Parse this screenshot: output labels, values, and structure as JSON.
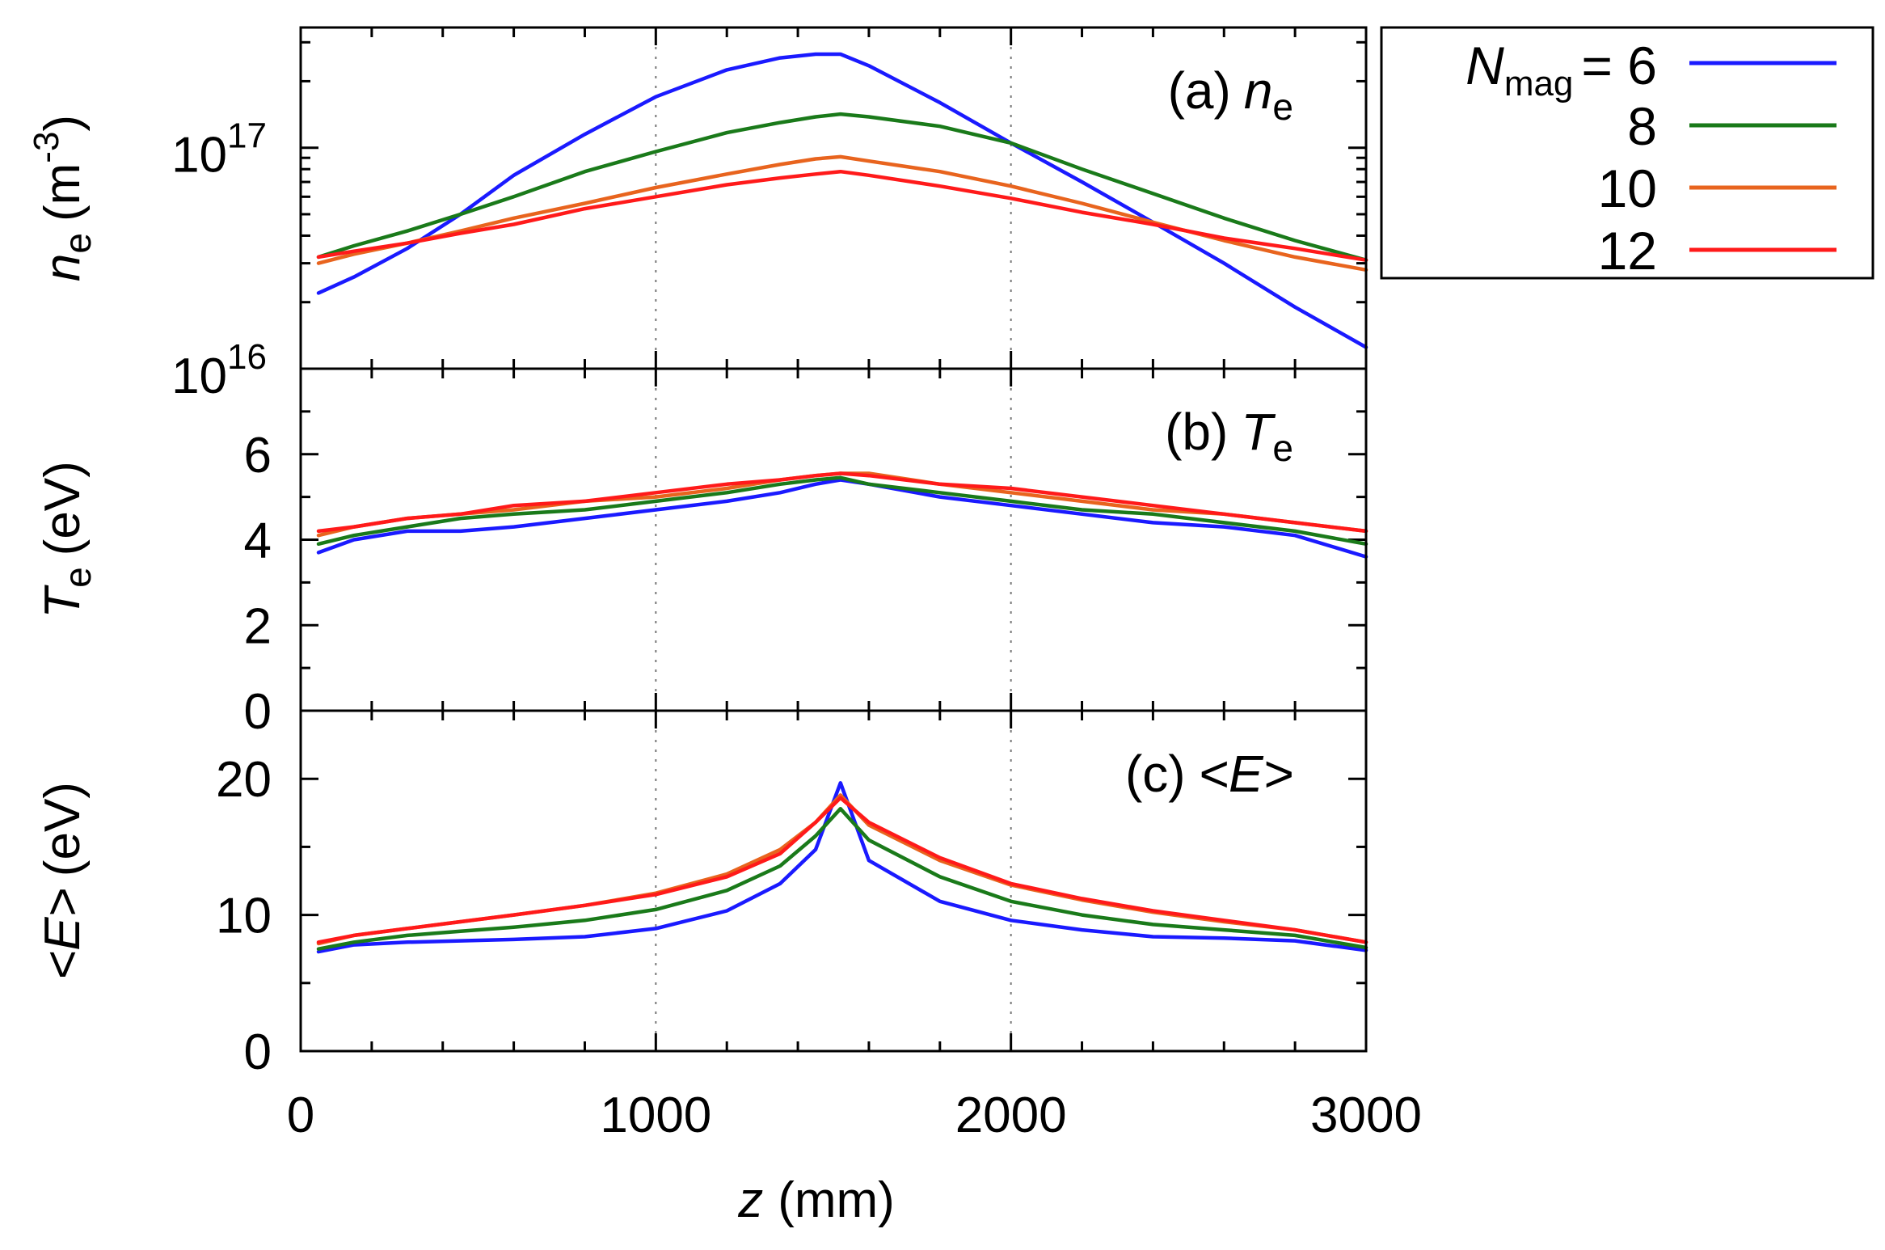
{
  "chart_data": {
    "type": "line",
    "shared_x_label": {
      "variable": "z",
      "units": "(mm)"
    },
    "x_ticks": [
      "0",
      "1000",
      "2000",
      "3000"
    ],
    "xlim": [
      0,
      3000
    ],
    "x": [
      50,
      150,
      300,
      450,
      600,
      800,
      1000,
      1200,
      1350,
      1450,
      1520,
      1600,
      1800,
      2000,
      2200,
      2400,
      2600,
      2800,
      3000
    ],
    "legend": {
      "title_var": "N",
      "title_sub": "mag",
      "title_eq": "= 6",
      "entries": [
        "6",
        "8",
        "10",
        "12"
      ],
      "location": "outside-top-right"
    },
    "colors": {
      "6": "#1a1aff",
      "8": "#1a7a1a",
      "10": "#e8641e",
      "12": "#ff1a1a"
    },
    "panels": [
      {
        "label_prefix": "(a)",
        "label_var": "n",
        "label_sub": "e",
        "ylabel_var": "n",
        "ylabel_sub": "e",
        "ylabel_units": "(m",
        "ylabel_units_sup": "-3",
        "ylabel_units_end": ")",
        "yscale": "log",
        "ylim": [
          1e+16,
          3.5e+17
        ],
        "y_ticks": [
          {
            "value": 1e+16,
            "base": "10",
            "exp": "16"
          },
          {
            "value": 1e+17,
            "base": "10",
            "exp": "17"
          }
        ],
        "series": [
          {
            "name": "6",
            "values": [
              2.2e+16,
              2.6e+16,
              3.5e+16,
              5e+16,
              7.5e+16,
              1.15e+17,
              1.7e+17,
              2.25e+17,
              2.55e+17,
              2.65e+17,
              2.65e+17,
              2.35e+17,
              1.6e+17,
              1.05e+17,
              7e+16,
              4.6e+16,
              3e+16,
              1.9e+16,
              1.25e+16
            ]
          },
          {
            "name": "8",
            "values": [
              3.2e+16,
              3.6e+16,
              4.2e+16,
              5e+16,
              6e+16,
              7.8e+16,
              9.6e+16,
              1.17e+17,
              1.3e+17,
              1.38e+17,
              1.42e+17,
              1.38e+17,
              1.25e+17,
              1.05e+17,
              8e+16,
              6.2e+16,
              4.8e+16,
              3.8e+16,
              3.1e+16
            ]
          },
          {
            "name": "10",
            "values": [
              3e+16,
              3.3e+16,
              3.7e+16,
              4.2e+16,
              4.8e+16,
              5.6e+16,
              6.6e+16,
              7.6e+16,
              8.4e+16,
              8.9e+16,
              9.1e+16,
              8.7e+16,
              7.8e+16,
              6.7e+16,
              5.6e+16,
              4.6e+16,
              3.8e+16,
              3.2e+16,
              2.8e+16
            ]
          },
          {
            "name": "12",
            "values": [
              3.2e+16,
              3.4e+16,
              3.7e+16,
              4.1e+16,
              4.5e+16,
              5.3e+16,
              6e+16,
              6.8e+16,
              7.3e+16,
              7.6e+16,
              7.8e+16,
              7.5e+16,
              6.7e+16,
              5.9e+16,
              5.1e+16,
              4.5e+16,
              3.9e+16,
              3.5e+16,
              3.1e+16
            ]
          }
        ]
      },
      {
        "label_prefix": "(b)",
        "label_var": "T",
        "label_sub": "e",
        "ylabel_var": "T",
        "ylabel_sub": "e",
        "ylabel_units": "(eV)",
        "ylabel_units_sup": "",
        "ylabel_units_end": "",
        "yscale": "linear",
        "ylim": [
          0,
          8
        ],
        "y_ticks": [
          {
            "value": 0,
            "text": "0"
          },
          {
            "value": 2,
            "text": "2"
          },
          {
            "value": 4,
            "text": "4"
          },
          {
            "value": 6,
            "text": "6"
          }
        ],
        "series": [
          {
            "name": "6",
            "values": [
              3.7,
              4.0,
              4.2,
              4.2,
              4.3,
              4.5,
              4.7,
              4.9,
              5.1,
              5.3,
              5.4,
              5.3,
              5.0,
              4.8,
              4.6,
              4.4,
              4.3,
              4.1,
              3.6
            ]
          },
          {
            "name": "8",
            "values": [
              3.9,
              4.1,
              4.3,
              4.5,
              4.6,
              4.7,
              4.9,
              5.1,
              5.3,
              5.4,
              5.45,
              5.3,
              5.1,
              4.9,
              4.7,
              4.6,
              4.4,
              4.2,
              3.9
            ]
          },
          {
            "name": "10",
            "values": [
              4.1,
              4.3,
              4.5,
              4.6,
              4.7,
              4.9,
              5.0,
              5.2,
              5.4,
              5.5,
              5.55,
              5.55,
              5.3,
              5.1,
              4.9,
              4.7,
              4.6,
              4.4,
              4.2
            ]
          },
          {
            "name": "12",
            "values": [
              4.2,
              4.3,
              4.5,
              4.6,
              4.8,
              4.9,
              5.1,
              5.3,
              5.4,
              5.5,
              5.55,
              5.5,
              5.3,
              5.2,
              5.0,
              4.8,
              4.6,
              4.4,
              4.2
            ]
          }
        ]
      },
      {
        "label_prefix": "(c)",
        "label_var": "<E>",
        "label_sub": "",
        "ylabel_var": "<E>",
        "ylabel_sub": "",
        "ylabel_units": "(eV)",
        "ylabel_units_sup": "",
        "ylabel_units_end": "",
        "yscale": "linear",
        "ylim": [
          0,
          25
        ],
        "y_ticks": [
          {
            "value": 0,
            "text": "0"
          },
          {
            "value": 10,
            "text": "10"
          },
          {
            "value": 20,
            "text": "20"
          }
        ],
        "series": [
          {
            "name": "6",
            "values": [
              7.3,
              7.8,
              8.0,
              8.1,
              8.2,
              8.4,
              9.0,
              10.3,
              12.3,
              14.8,
              19.7,
              14.0,
              11.0,
              9.6,
              8.9,
              8.4,
              8.3,
              8.1,
              7.4
            ]
          },
          {
            "name": "8",
            "values": [
              7.5,
              8.0,
              8.5,
              8.8,
              9.1,
              9.6,
              10.4,
              11.8,
              13.6,
              15.8,
              17.8,
              15.5,
              12.8,
              11.0,
              10.0,
              9.3,
              8.9,
              8.5,
              7.6
            ]
          },
          {
            "name": "10",
            "values": [
              7.9,
              8.5,
              9.0,
              9.5,
              10.0,
              10.7,
              11.6,
              13.0,
              14.8,
              16.8,
              18.8,
              16.6,
              14.0,
              12.2,
              11.1,
              10.2,
              9.5,
              8.9,
              8.0
            ]
          },
          {
            "name": "12",
            "values": [
              8.0,
              8.5,
              9.0,
              9.5,
              10.0,
              10.7,
              11.5,
              12.8,
              14.5,
              16.8,
              18.6,
              16.8,
              14.2,
              12.3,
              11.2,
              10.3,
              9.6,
              8.9,
              8.0
            ]
          }
        ]
      }
    ]
  }
}
